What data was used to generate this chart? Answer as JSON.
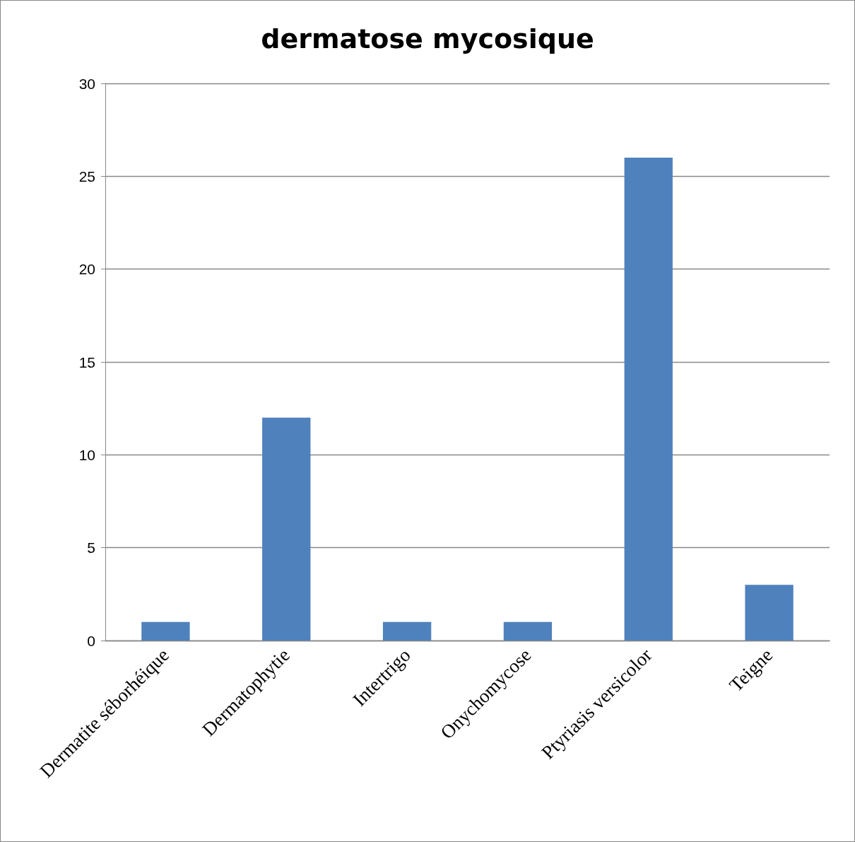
{
  "chart_data": {
    "type": "bar",
    "title": "dermatose mycosique",
    "categories": [
      "Dermatite séborhéique",
      "Dermatophytie",
      "Intertrigo",
      "Onychomycose",
      "Ptyriasis versicolor",
      "Teigne"
    ],
    "values": [
      1,
      12,
      1,
      1,
      26,
      3
    ],
    "color": "#4f81bd",
    "ylim": [
      0,
      30
    ],
    "yticks": [
      0,
      5,
      10,
      15,
      20,
      25,
      30
    ],
    "grid": "y"
  }
}
